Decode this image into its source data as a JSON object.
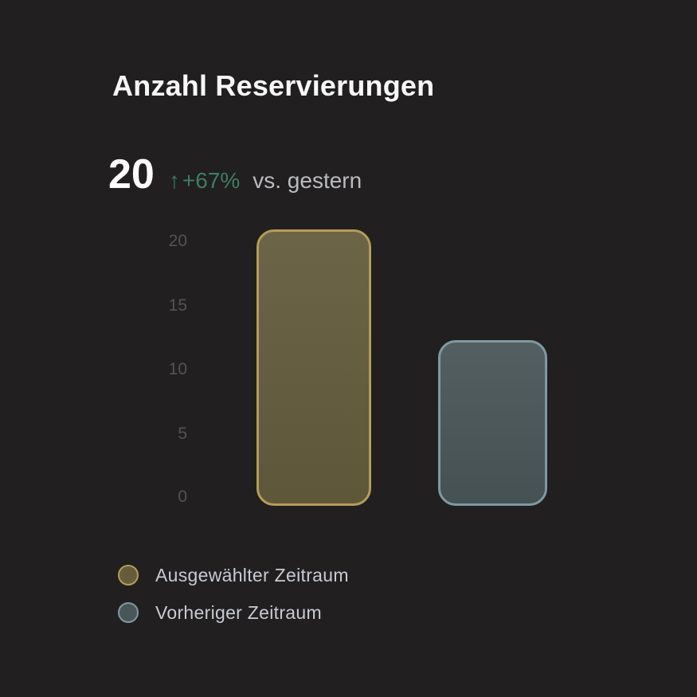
{
  "header": {
    "title": "Anzahl Reservierungen"
  },
  "kpi": {
    "value": "20",
    "arrow": "↑",
    "delta": "+67%",
    "comparison": "vs. gestern"
  },
  "chart_data": {
    "type": "bar",
    "title": "Anzahl Reservierungen",
    "categories": [
      "Ausgewählter Zeitraum",
      "Vorheriger Zeitraum"
    ],
    "series": [
      {
        "name": "Ausgewählter Zeitraum",
        "value": 20,
        "fill": "#645c3d",
        "border": "#b59c57"
      },
      {
        "name": "Vorheriger Zeitraum",
        "value": 12,
        "fill": "#4a5659",
        "border": "#7f99a2"
      }
    ],
    "xlabel": "",
    "ylabel": "",
    "ylim": [
      0,
      20
    ],
    "yticks": [
      "20",
      "15",
      "10",
      "5",
      "0"
    ],
    "grid": false,
    "legend_position": "bottom-left"
  },
  "colors": {
    "background": "#211f20",
    "title": "#f8f8f8",
    "kpi_value": "#ffffff",
    "delta": "#3e7e63",
    "comparison_text": "#babbbe",
    "axis_label": "#565354",
    "legend_text": "#c9cbd1"
  }
}
